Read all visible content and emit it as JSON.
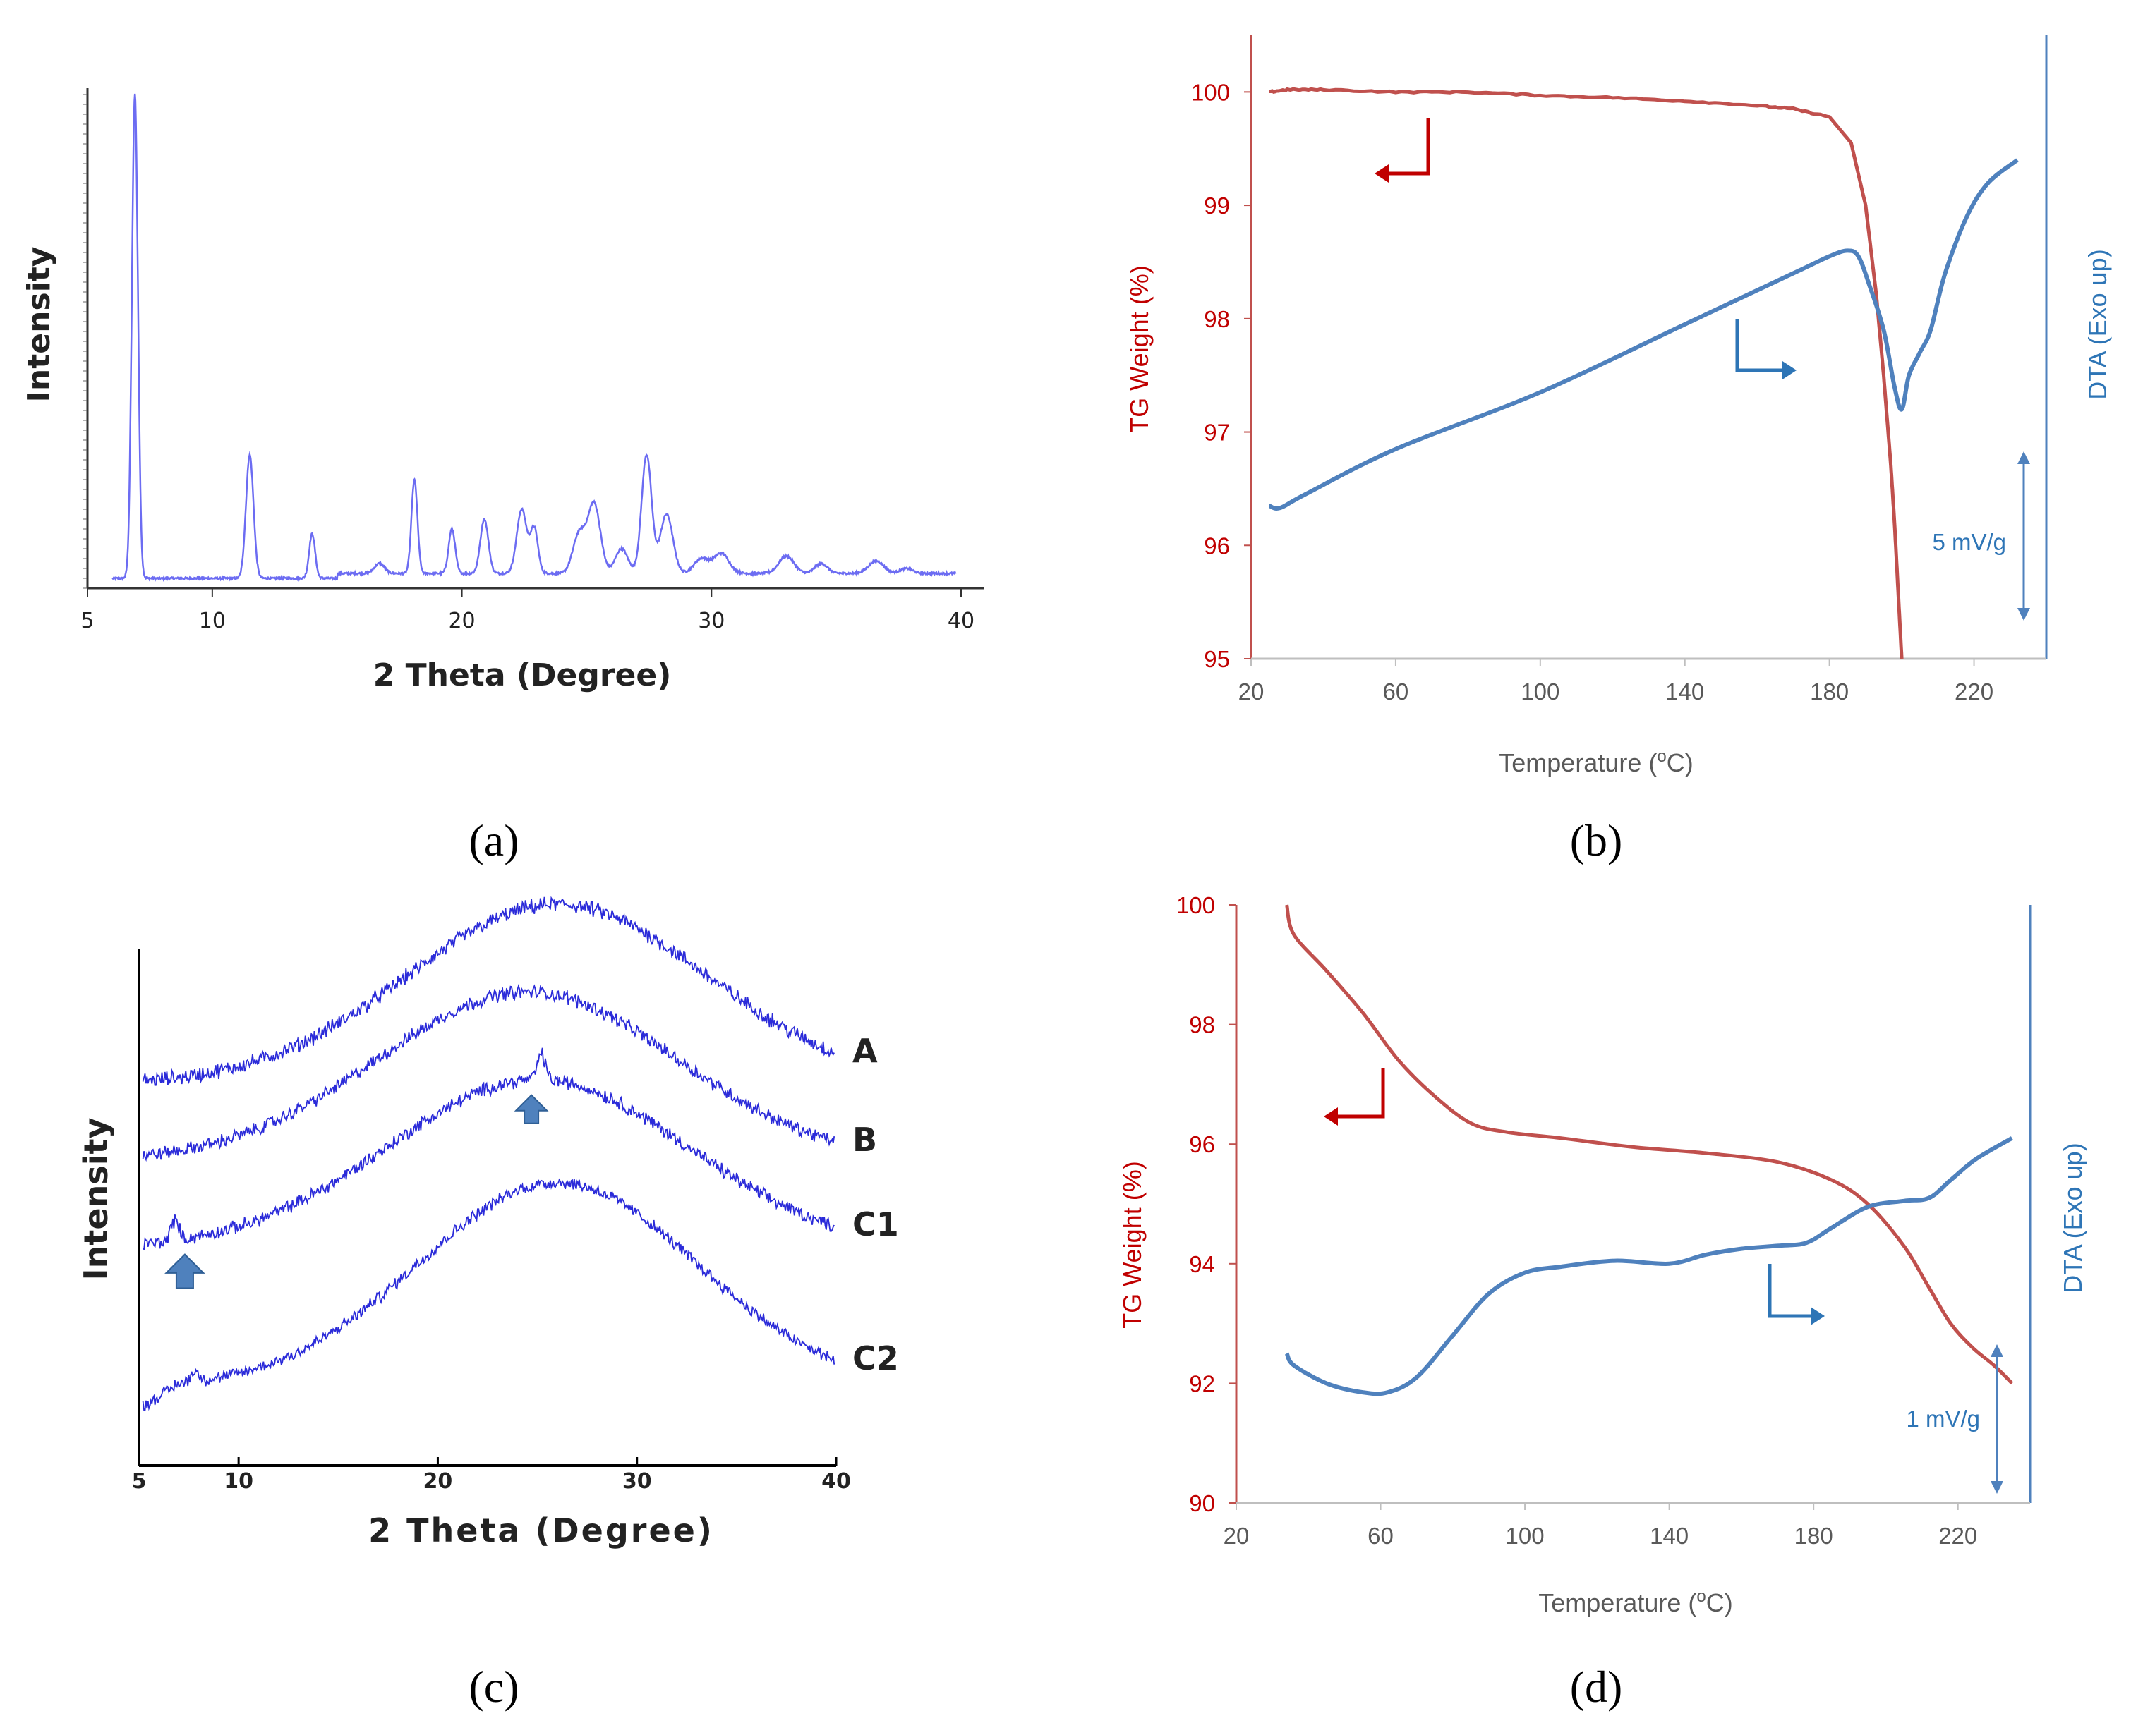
{
  "panels": {
    "a": {
      "caption": "(a)"
    },
    "b": {
      "caption": "(b)",
      "scale_bar_label": "5 mV/g"
    },
    "c": {
      "caption": "(c)"
    },
    "d": {
      "caption": "(d)",
      "scale_bar_label": "1 mV/g"
    }
  },
  "colors": {
    "xrd_line": "#6c6cf2",
    "xrd_line_c": "#2b2bd9",
    "tg_line": "#c0504d",
    "dta_line": "#4f81bd",
    "tg_axis_text": "#c00000",
    "dta_axis_text": "#2e75b6",
    "arrow_red": "#c00000",
    "arrow_blue": "#2e75b6",
    "marker_arrow": "#4f81bd"
  },
  "chart_data": [
    {
      "id": "a",
      "type": "line",
      "title": "",
      "xlabel": "2 Theta (Degree)",
      "ylabel": "Intensity",
      "xlim": [
        5,
        40
      ],
      "xticks": [
        5,
        10,
        20,
        30,
        40
      ],
      "ylim": [
        0,
        1
      ],
      "baseline": 0.02,
      "peaks": [
        {
          "x": 6.9,
          "h": 0.98,
          "w": 0.12
        },
        {
          "x": 11.5,
          "h": 0.25,
          "w": 0.15
        },
        {
          "x": 14.0,
          "h": 0.09,
          "w": 0.12
        },
        {
          "x": 16.7,
          "h": 0.02,
          "w": 0.2
        },
        {
          "x": 18.1,
          "h": 0.19,
          "w": 0.12
        },
        {
          "x": 19.6,
          "h": 0.09,
          "w": 0.13
        },
        {
          "x": 20.9,
          "h": 0.11,
          "w": 0.16
        },
        {
          "x": 22.4,
          "h": 0.13,
          "w": 0.2
        },
        {
          "x": 22.9,
          "h": 0.09,
          "w": 0.15
        },
        {
          "x": 24.7,
          "h": 0.08,
          "w": 0.25
        },
        {
          "x": 25.3,
          "h": 0.14,
          "w": 0.25
        },
        {
          "x": 26.4,
          "h": 0.05,
          "w": 0.25
        },
        {
          "x": 27.4,
          "h": 0.24,
          "w": 0.2
        },
        {
          "x": 28.2,
          "h": 0.12,
          "w": 0.25
        },
        {
          "x": 29.6,
          "h": 0.03,
          "w": 0.3
        },
        {
          "x": 30.4,
          "h": 0.04,
          "w": 0.3
        },
        {
          "x": 33.0,
          "h": 0.035,
          "w": 0.3
        },
        {
          "x": 34.4,
          "h": 0.02,
          "w": 0.25
        },
        {
          "x": 36.6,
          "h": 0.025,
          "w": 0.3
        },
        {
          "x": 37.8,
          "h": 0.01,
          "w": 0.25
        }
      ]
    },
    {
      "id": "b",
      "type": "line",
      "title": "",
      "xlabel": "Temperature (°C)",
      "xlabel_parts": {
        "pre": "Temperature (",
        "sup": "o",
        "post": "C)"
      },
      "ylabel": "TG Weight (%)",
      "ylabel2": "DTA (Exo up)",
      "xlim": [
        20,
        240
      ],
      "xticks": [
        20,
        60,
        100,
        140,
        180,
        220
      ],
      "ylim": [
        95,
        100.5
      ],
      "yticks": [
        95,
        96,
        97,
        98,
        99,
        100
      ],
      "series": [
        {
          "name": "TG",
          "axis": "left",
          "x": [
            25,
            30,
            40,
            60,
            80,
            100,
            120,
            140,
            160,
            170,
            180,
            186,
            190,
            193,
            195,
            197,
            198,
            199,
            200
          ],
          "y": [
            100.0,
            100.02,
            100.02,
            100.0,
            100.0,
            99.97,
            99.95,
            99.92,
            99.88,
            99.85,
            99.78,
            99.55,
            99.0,
            98.2,
            97.5,
            96.7,
            96.2,
            95.6,
            95.0
          ]
        },
        {
          "name": "DTA",
          "axis": "right",
          "x": [
            25,
            28,
            35,
            60,
            100,
            140,
            170,
            180,
            185,
            188,
            191,
            195,
            198,
            200,
            202,
            205,
            208,
            212,
            218,
            224,
            232
          ],
          "y": [
            96.35,
            96.33,
            96.45,
            96.85,
            97.35,
            97.95,
            98.4,
            98.55,
            98.6,
            98.55,
            98.3,
            97.9,
            97.4,
            97.2,
            97.5,
            97.7,
            97.9,
            98.4,
            98.9,
            99.2,
            99.4
          ]
        }
      ]
    },
    {
      "id": "c",
      "type": "line",
      "title": "",
      "xlabel": "2 Theta (Degree)",
      "ylabel": "Intensity",
      "xlim": [
        5,
        40
      ],
      "xticks": [
        5,
        10,
        20,
        30,
        40
      ],
      "series": [
        {
          "name": "A",
          "offset": 0.74,
          "amp": 0.35,
          "center": 26,
          "width": 7.5,
          "noise": 0.025
        },
        {
          "name": "B",
          "offset": 0.59,
          "amp": 0.33,
          "center": 24.5,
          "width": 7.5,
          "noise": 0.022
        },
        {
          "name": "C1",
          "offset": 0.42,
          "amp": 0.33,
          "center": 25,
          "width": 7.5,
          "noise": 0.022,
          "spikes": [
            {
              "x": 6.8,
              "h": 0.04
            },
            {
              "x": 25.2,
              "h": 0.05
            }
          ]
        },
        {
          "name": "C2",
          "offset": 0.15,
          "amp": 0.4,
          "center": 26,
          "width": 7.0,
          "noise": 0.02,
          "spikes": [
            {
              "x": 7.8,
              "h": 0.02
            }
          ]
        }
      ],
      "markers": [
        {
          "x": 7.3,
          "series": "C1"
        },
        {
          "x": 24.7,
          "series": "C1"
        }
      ]
    },
    {
      "id": "d",
      "type": "line",
      "title": "",
      "xlabel": "Temperature (°C)",
      "xlabel_parts": {
        "pre": "Temperature (",
        "sup": "o",
        "post": "C)"
      },
      "ylabel": "TG Weight (%)",
      "ylabel2": "DTA (Exo up)",
      "xlim": [
        20,
        240
      ],
      "xticks": [
        20,
        60,
        100,
        140,
        180,
        220
      ],
      "ylim": [
        90,
        100
      ],
      "yticks": [
        90,
        92,
        94,
        96,
        98,
        100
      ],
      "series": [
        {
          "name": "TG",
          "axis": "left",
          "x": [
            34,
            36,
            45,
            55,
            65,
            75,
            85,
            95,
            110,
            130,
            150,
            170,
            185,
            195,
            205,
            212,
            218,
            224,
            230,
            235
          ],
          "y": [
            100,
            99.5,
            98.9,
            98.2,
            97.4,
            96.8,
            96.35,
            96.2,
            96.1,
            95.95,
            95.85,
            95.7,
            95.4,
            95.0,
            94.3,
            93.6,
            93.0,
            92.6,
            92.3,
            92.0
          ]
        },
        {
          "name": "DTA",
          "axis": "right",
          "x": [
            34,
            36,
            45,
            55,
            62,
            70,
            80,
            90,
            100,
            110,
            125,
            140,
            150,
            160,
            170,
            178,
            185,
            195,
            205,
            212,
            218,
            225,
            235
          ],
          "y": [
            92.5,
            92.3,
            92.0,
            91.85,
            91.85,
            92.1,
            92.8,
            93.5,
            93.85,
            93.95,
            94.05,
            94.0,
            94.15,
            94.25,
            94.3,
            94.35,
            94.6,
            94.95,
            95.05,
            95.1,
            95.4,
            95.75,
            96.1
          ]
        }
      ]
    }
  ]
}
